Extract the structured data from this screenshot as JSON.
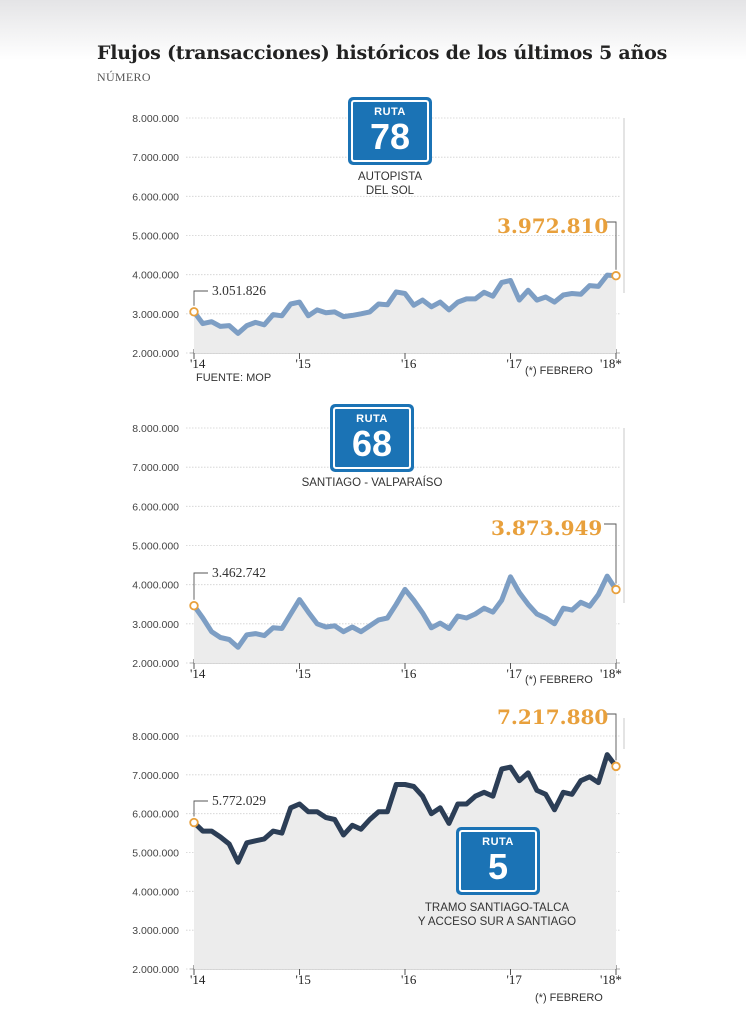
{
  "title": "Flujos (transacciones) históricos de los últimos 5 años",
  "subtitle": "NÚMERO",
  "colors": {
    "line_light": "#7d9ec4",
    "line_dark": "#2c3e56",
    "highlight": "#e8a03c",
    "sign": "#1b73b5",
    "area": "#ececec"
  },
  "chart_data": [
    {
      "type": "line",
      "route_label": "RUTA",
      "route_number": "78",
      "caption": [
        "AUTOPISTA",
        "DEL SOL"
      ],
      "source": "FUENTE: MOP",
      "footnote": "(*) FEBRERO",
      "ylim": [
        2000000,
        8000000
      ],
      "y_ticks": [
        "8.000.000",
        "7.000.000",
        "6.000.000",
        "5.000.000",
        "4.000.000",
        "3.000.000",
        "2.000.000"
      ],
      "x_ticks": [
        "'14",
        "'15",
        "'16",
        "'17",
        "'18*"
      ],
      "first_label": "3.051.826",
      "last_label": "3.972.810",
      "values": [
        3051826,
        2750000,
        2800000,
        2680000,
        2700000,
        2500000,
        2700000,
        2780000,
        2720000,
        2980000,
        2950000,
        3250000,
        3300000,
        2950000,
        3100000,
        3030000,
        3050000,
        2930000,
        2960000,
        3000000,
        3050000,
        3250000,
        3230000,
        3560000,
        3520000,
        3220000,
        3350000,
        3180000,
        3300000,
        3100000,
        3300000,
        3380000,
        3380000,
        3550000,
        3450000,
        3800000,
        3850000,
        3350000,
        3600000,
        3350000,
        3430000,
        3300000,
        3480000,
        3520000,
        3500000,
        3720000,
        3700000,
        3990000,
        3972810
      ]
    },
    {
      "type": "line",
      "route_label": "RUTA",
      "route_number": "68",
      "caption": [
        "SANTIAGO - VALPARAÍSO"
      ],
      "source": "",
      "footnote": "(*) FEBRERO",
      "ylim": [
        2000000,
        8000000
      ],
      "y_ticks": [
        "8.000.000",
        "7.000.000",
        "6.000.000",
        "5.000.000",
        "4.000.000",
        "3.000.000",
        "2.000.000"
      ],
      "x_ticks": [
        "'14",
        "'15",
        "'16",
        "'17",
        "'18*"
      ],
      "first_label": "3.462.742",
      "last_label": "3.873.949",
      "values": [
        3462742,
        3150000,
        2800000,
        2650000,
        2600000,
        2400000,
        2720000,
        2750000,
        2700000,
        2900000,
        2880000,
        3250000,
        3620000,
        3300000,
        3000000,
        2920000,
        2950000,
        2800000,
        2920000,
        2800000,
        2950000,
        3100000,
        3150000,
        3500000,
        3880000,
        3600000,
        3280000,
        2900000,
        3020000,
        2880000,
        3200000,
        3150000,
        3250000,
        3400000,
        3300000,
        3600000,
        4200000,
        3800000,
        3500000,
        3250000,
        3150000,
        3000000,
        3400000,
        3350000,
        3550000,
        3450000,
        3750000,
        4220000,
        3873949
      ]
    },
    {
      "type": "line",
      "route_label": "RUTA",
      "route_number": "5",
      "caption": [
        "TRAMO SANTIAGO-TALCA",
        "Y ACCESO SUR A SANTIAGO"
      ],
      "source": "",
      "footnote": "(*) FEBRERO",
      "ylim": [
        2000000,
        8000000
      ],
      "y_ticks": [
        "8.000.000",
        "7.000.000",
        "6.000.000",
        "5.000.000",
        "4.000.000",
        "3.000.000",
        "2.000.000"
      ],
      "x_ticks": [
        "'14",
        "'15",
        "'16",
        "'17",
        "'18*"
      ],
      "first_label": "5.772.029",
      "last_label": "7.217.880",
      "values": [
        5772029,
        5550000,
        5550000,
        5400000,
        5220000,
        4750000,
        5250000,
        5300000,
        5350000,
        5550000,
        5500000,
        6150000,
        6250000,
        6050000,
        6050000,
        5900000,
        5850000,
        5450000,
        5700000,
        5600000,
        5850000,
        6050000,
        6050000,
        6750000,
        6750000,
        6700000,
        6450000,
        6000000,
        6150000,
        5750000,
        6250000,
        6250000,
        6450000,
        6550000,
        6450000,
        7150000,
        7200000,
        6850000,
        7050000,
        6600000,
        6500000,
        6100000,
        6550000,
        6500000,
        6850000,
        6950000,
        6800000,
        7520000,
        7217880
      ]
    }
  ]
}
